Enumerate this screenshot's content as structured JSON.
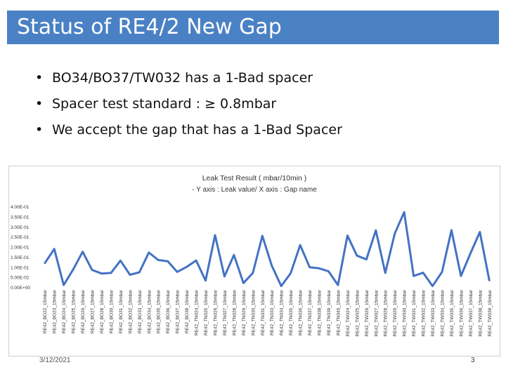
{
  "title": "Status of RE4/2 New Gap",
  "bullets": [
    "BO34/BO37/TW032 has a 1-Bad spacer",
    "Spacer test standard : ≥ 0.8mbar",
    "We accept the gap that has a 1-Bad Spacer"
  ],
  "bullet_symbol": "•",
  "footer_date": "3/12/2021",
  "page_number": "3",
  "colors": {
    "title_bar": "#4a81c4",
    "series_line": "#4472c4"
  },
  "chart_data": {
    "type": "line",
    "title": "Leak Test Result ( mbar/10min )",
    "subtitle": "- Y axis : Leak value/ X axis : Gap name",
    "ylim": [
      0,
      0.4
    ],
    "yticks": [
      "4.00E-01",
      "3.50E-01",
      "3.00E-01",
      "2.50E-01",
      "2.00E-01",
      "1.50E-01",
      "1.00E-01",
      "5.00E-02",
      "0.00E+00"
    ],
    "ytick_values": [
      0.4,
      0.35,
      0.3,
      0.25,
      0.2,
      0.15,
      0.1,
      0.05,
      0
    ],
    "grid": false,
    "legend": "none",
    "series": [
      {
        "values": [
          0.118,
          0.189,
          0.01,
          0.087,
          0.175,
          0.085,
          0.067,
          0.07,
          0.131,
          0.061,
          0.073,
          0.171,
          0.134,
          0.128,
          0.075,
          0.1,
          0.132,
          0.032,
          0.257,
          0.053,
          0.159,
          0.02,
          0.07,
          0.254,
          0.106,
          0.005,
          0.069,
          0.208,
          0.098,
          0.093,
          0.078,
          0.01,
          0.255,
          0.156,
          0.137,
          0.281,
          0.07,
          0.265,
          0.371,
          0.055,
          0.071,
          0.005,
          0.075,
          0.282,
          0.055,
          0.167,
          0.273,
          0.032
        ]
      }
    ],
    "categories": [
      "RE42_BO22_15mbar",
      "RE42_BO23_15mbar",
      "RE42_BO24_15mbar",
      "RE42_BO25_15mbar",
      "RE42_BO26_15mbar",
      "RE42_BO27_15mbar",
      "RE42_BO28_15mbar",
      "RE42_BO30_15mbar",
      "RE42_BO31_15mbar",
      "RE42_BO32_15mbar",
      "RE42_BO33_15mbar",
      "RE42_BO34_15mbar",
      "RE42_BO35_15mbar",
      "RE42_BO36_15mbar",
      "RE42_BO37_15mbar",
      "RE42_BO38_15mbar",
      "RE42_TN024_15mbar",
      "RE42_TN025_15mbar",
      "RE42_TN026_15mbar",
      "RE42_TN027_15mbar",
      "RE42_TN028_15mbar",
      "RE42_TN029_15mbar",
      "RE42_TN030_15mbar",
      "RE42_TN031_15mbar",
      "RE42_TN033_15mbar",
      "RE42_TN034_15mbar",
      "RE42_TN035_15mbar",
      "RE42_TN036_15mbar",
      "RE42_TN037_15mbar",
      "RE42_TN038_15mbar",
      "RE42_TN039_15mbar",
      "RE42_TN040_15mbar",
      "RE42_TW024_15mbar",
      "RE42_TW025_15mbar",
      "RE42_TW026_15mbar",
      "RE42_TW027_15mbar",
      "RE42_TW028_15mbar",
      "RE42_TW029_15mbar",
      "RE42_TW030_15mbar",
      "RE42_TW031_15mbar",
      "RE42_TW032_15mbar",
      "RE42_TW033_15mbar",
      "RE42_TW034_15mbar",
      "RE42_TW035_15mbar",
      "RE42_TW036_15mbar",
      "RE42_TW037_15mbar",
      "RE42_TW038_15mbar",
      "RE42_TW039_15mbar"
    ]
  }
}
